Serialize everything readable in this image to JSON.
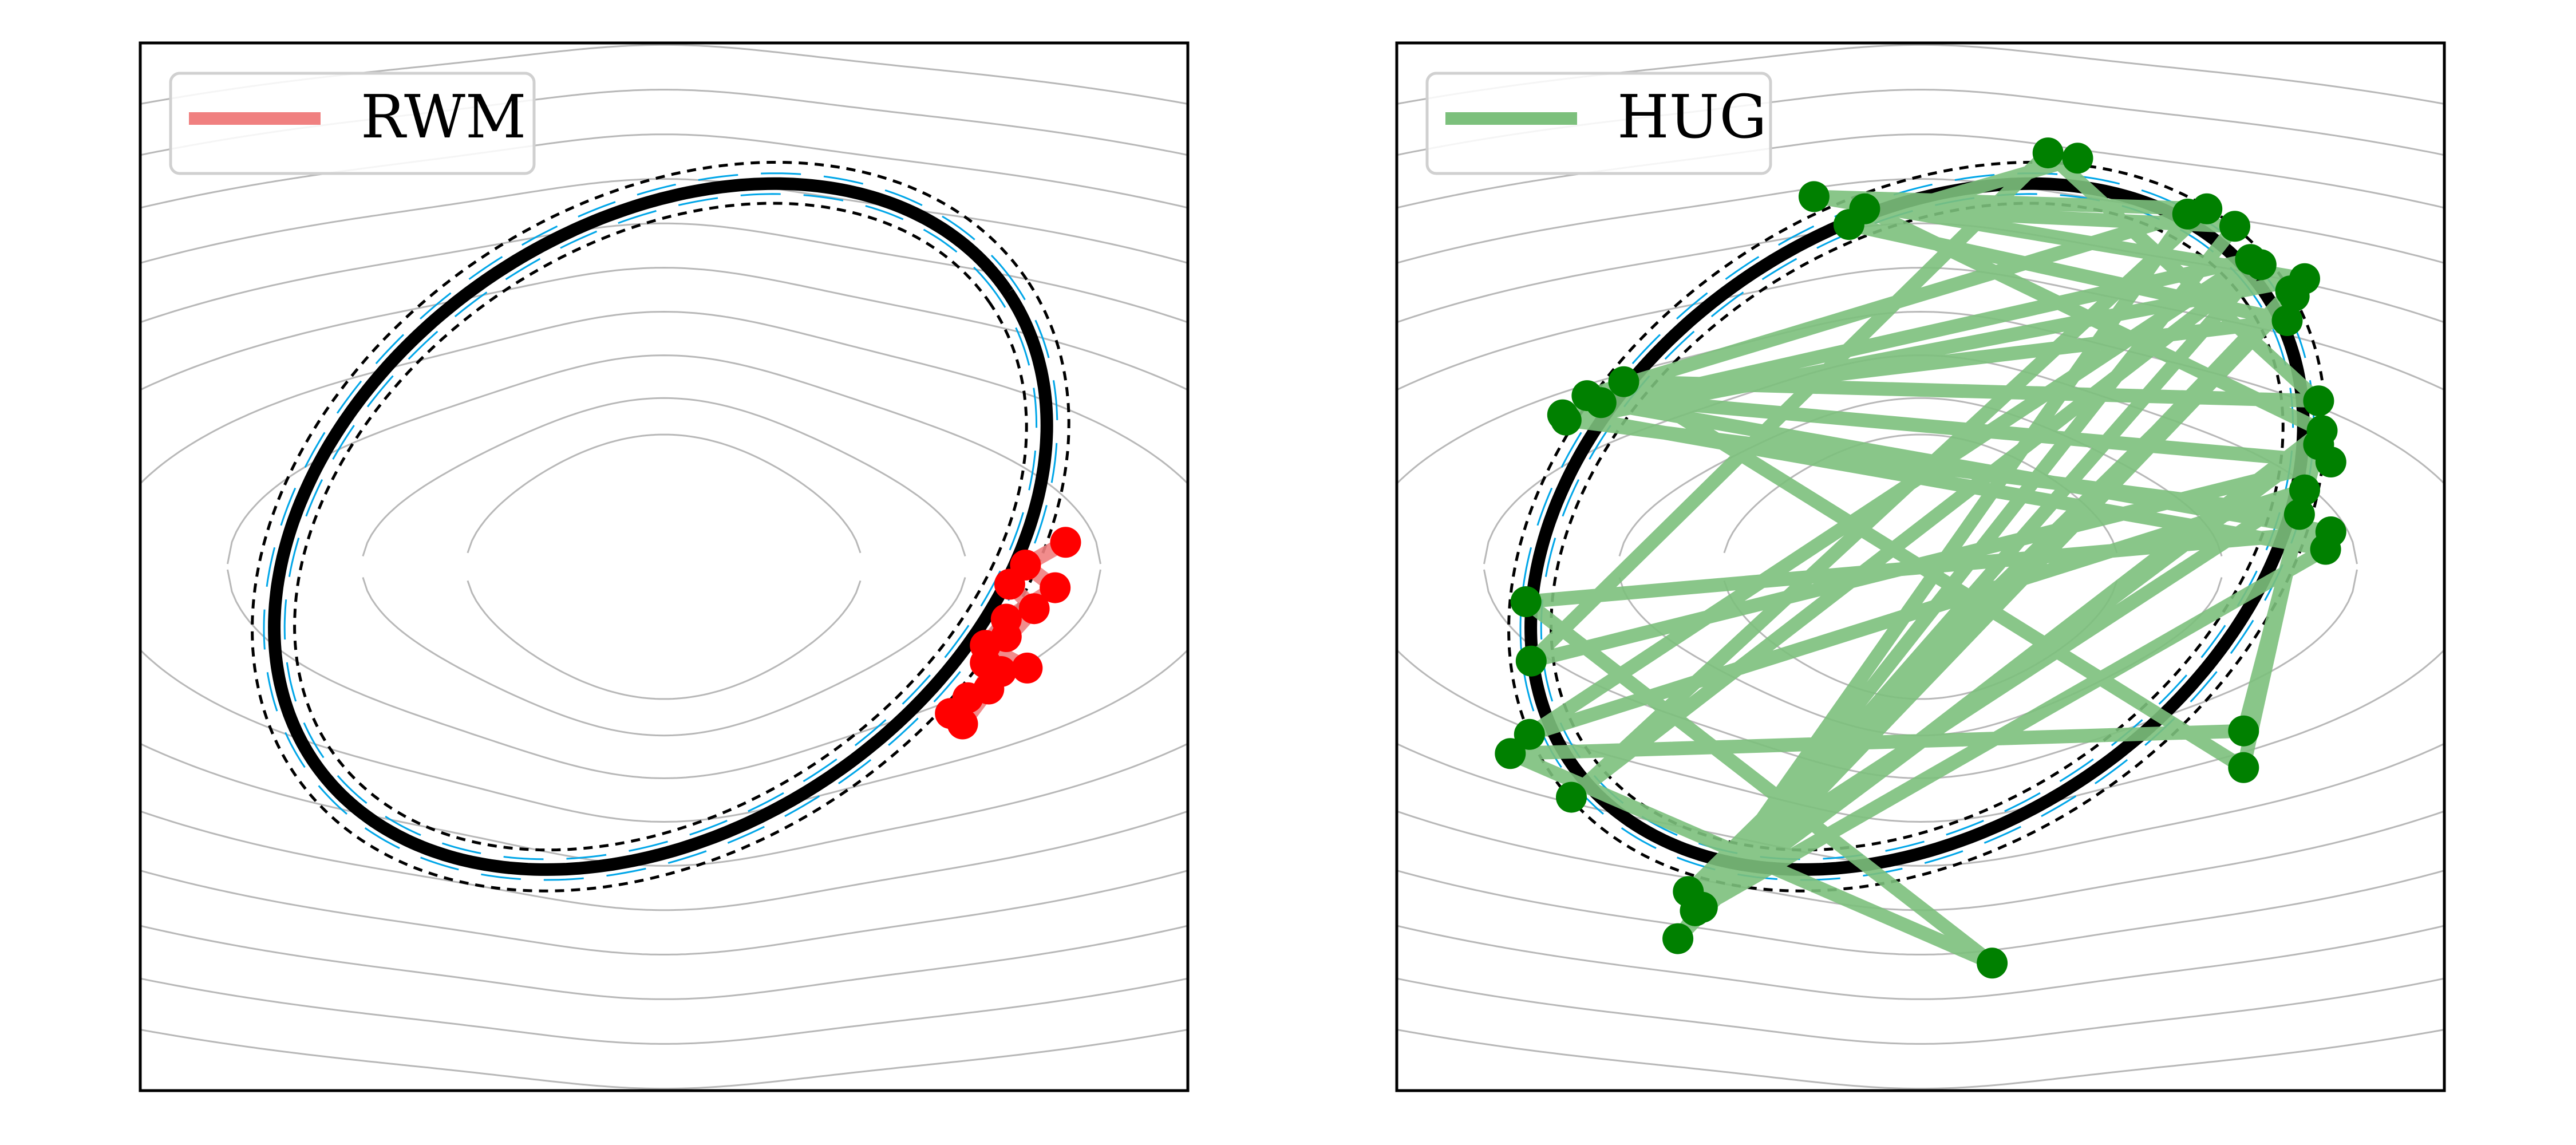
{
  "chart_data": [
    {
      "type": "line",
      "legend": {
        "label": "RWM",
        "color": "#f08080",
        "placement": "top-left"
      },
      "grid": false,
      "ticks": false,
      "xlim": [
        -3.0,
        3.0
      ],
      "ylim": [
        -3.0,
        3.0
      ],
      "ellipse": {
        "center": [
          -0.02,
          0.23
        ],
        "semi_major": 2.4,
        "semi_minor": 1.73,
        "angle_deg": 34
      },
      "samples": {
        "point_color": "#ff0000",
        "line_color": "#f08080",
        "x": [
          2.3,
          2.07,
          2.24,
          1.96,
          1.84,
          2.08,
          1.93,
          1.74,
          1.64,
          1.86,
          1.71,
          1.96,
          1.84,
          2.12,
          1.98
        ],
        "y": [
          0.14,
          0.01,
          -0.12,
          -0.3,
          -0.45,
          -0.58,
          -0.6,
          -0.75,
          -0.84,
          -0.7,
          -0.9,
          -0.4,
          -0.55,
          -0.24,
          -0.1
        ]
      }
    },
    {
      "type": "line",
      "legend": {
        "label": "HUG",
        "color": "#7cc07c",
        "placement": "top-left"
      },
      "grid": false,
      "ticks": false,
      "xlim": [
        -3.0,
        3.0
      ],
      "ylim": [
        -3.0,
        3.0
      ],
      "ellipse": {
        "center": [
          -0.02,
          0.23
        ],
        "semi_major": 2.4,
        "semi_minor": 1.73,
        "angle_deg": 34
      },
      "samples": {
        "point_color": "#008000",
        "line_color": "#7cc07c",
        "x": [
          0.9,
          -0.41,
          2.1,
          -1.83,
          2.35,
          -2.26,
          0.41,
          -2.35,
          1.85,
          2.28,
          -1.29,
          1.95,
          -2.0,
          1.64,
          -0.61,
          2.2,
          -2.03,
          2.17,
          1.85,
          -1.7,
          2.28,
          0.73,
          -2.23,
          2.35,
          -1.91,
          1.53,
          -1.39,
          2.14,
          -1.33,
          2.2,
          -2.24,
          1.89,
          -2.05,
          2.32,
          -1.29,
          1.8,
          -0.32,
          2.3,
          -1.25,
          2.12
        ],
        "y": [
          2.34,
          1.96,
          1.41,
          0.94,
          0.2,
          -0.2,
          -2.27,
          -1.07,
          -0.94,
          0.7,
          -1.97,
          1.73,
          -1.32,
          2.05,
          2.12,
          1.65,
          0.84,
          0.3,
          -1.15,
          1.06,
          0.95,
          2.37,
          -0.54,
          0.6,
          0.98,
          2.02,
          -2.13,
          1.55,
          -1.86,
          0.44,
          -0.96,
          1.76,
          0.87,
          0.1,
          -1.97,
          1.95,
          2.05,
          0.78,
          -1.95,
          1.58
        ]
      }
    }
  ]
}
